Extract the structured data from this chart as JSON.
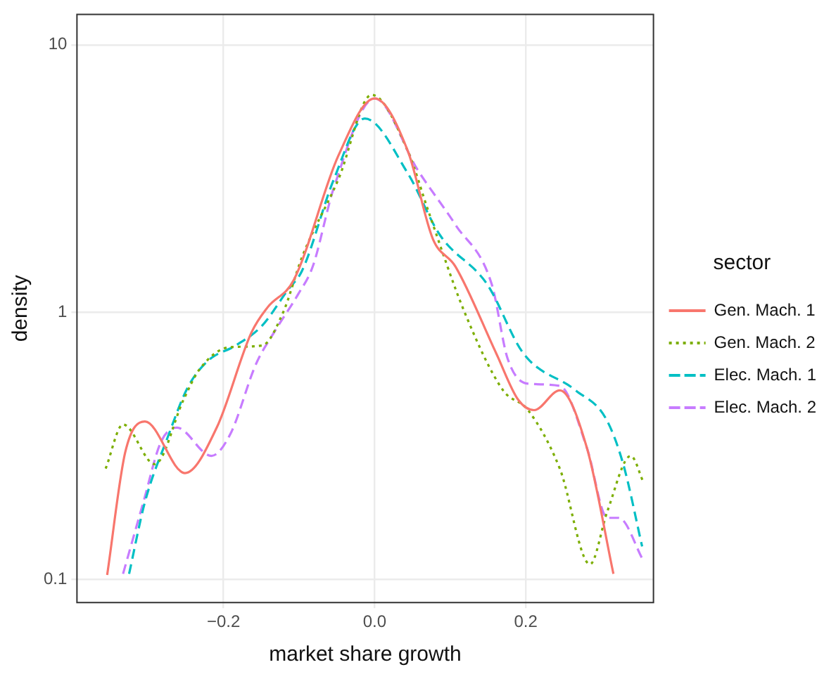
{
  "chart_data": {
    "type": "line",
    "xlabel": "market share growth",
    "ylabel": "density",
    "legend_title": "sector",
    "legend": "right",
    "grid": true,
    "log": "y",
    "marker": "none",
    "xlim": [
      -0.394,
      0.369
    ],
    "xticks": [
      {
        "value": -0.2,
        "label": "−0.2"
      },
      {
        "value": 0,
        "label": "0.0"
      },
      {
        "value": 0.2,
        "label": "0.2"
      }
    ],
    "ylim": [
      0.082,
      13
    ],
    "yticks": [
      0.1,
      1,
      10
    ],
    "series": [
      {
        "name": "Gen. Mach. 1",
        "color": "#f8766d",
        "line_style": "solid",
        "x": [
          -0.354,
          -0.33,
          -0.304,
          -0.251,
          -0.209,
          -0.163,
          -0.142,
          -0.107,
          -0.048,
          0,
          0.044,
          0.077,
          0.107,
          0.161,
          0.19,
          0.211,
          0.245,
          0.281,
          0.316
        ],
        "values": [
          0.104,
          0.3,
          0.39,
          0.25,
          0.37,
          0.84,
          1.04,
          1.32,
          3.85,
          6.3,
          4.0,
          1.88,
          1.48,
          0.7,
          0.47,
          0.43,
          0.51,
          0.31,
          0.105
        ]
      },
      {
        "name": "Gen. Mach. 2",
        "color": "#7cae00",
        "line_style": "dotted",
        "x": [
          -0.356,
          -0.333,
          -0.291,
          -0.253,
          -0.232,
          -0.191,
          -0.149,
          -0.121,
          -0.096,
          -0.048,
          -0.004,
          0.044,
          0.071,
          0.119,
          0.17,
          0.203,
          0.245,
          0.285,
          0.308,
          0.339,
          0.356
        ],
        "values": [
          0.26,
          0.38,
          0.27,
          0.47,
          0.61,
          0.74,
          0.75,
          1.0,
          1.61,
          3.14,
          6.5,
          4.0,
          2.39,
          1.0,
          0.51,
          0.43,
          0.26,
          0.114,
          0.18,
          0.29,
          0.23
        ]
      },
      {
        "name": "Elec. Mach. 1",
        "color": "#00bfc4",
        "line_style": "dashed",
        "x": [
          -0.325,
          -0.304,
          -0.274,
          -0.247,
          -0.22,
          -0.184,
          -0.149,
          -0.115,
          -0.096,
          -0.054,
          -0.013,
          0.044,
          0.086,
          0.149,
          0.197,
          0.266,
          0.306,
          0.329,
          0.354
        ],
        "values": [
          0.105,
          0.195,
          0.34,
          0.525,
          0.66,
          0.75,
          0.89,
          1.21,
          1.43,
          3.14,
          5.3,
          3.3,
          1.95,
          1.27,
          0.7,
          0.51,
          0.4,
          0.27,
          0.133
        ]
      },
      {
        "name": "Elec. Mach. 2",
        "color": "#c77cff",
        "line_style": "dashed",
        "x": [
          -0.333,
          -0.306,
          -0.283,
          -0.262,
          -0.216,
          -0.191,
          -0.157,
          -0.132,
          -0.101,
          -0.082,
          -0.054,
          0,
          0.057,
          0.107,
          0.155,
          0.176,
          0.203,
          0.245,
          0.281,
          0.308,
          0.323,
          0.356
        ],
        "values": [
          0.105,
          0.195,
          0.326,
          0.37,
          0.29,
          0.35,
          0.64,
          0.85,
          1.17,
          1.48,
          2.92,
          6.3,
          3.4,
          2.12,
          1.27,
          0.67,
          0.54,
          0.53,
          0.31,
          0.17,
          0.17,
          0.117
        ]
      }
    ]
  }
}
